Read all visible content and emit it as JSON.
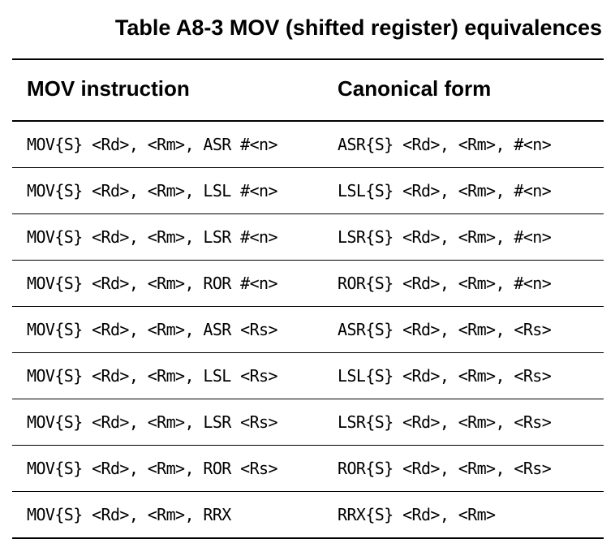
{
  "caption": "Table A8-3 MOV (shifted register) equivalences",
  "table": {
    "headers": [
      "MOV instruction",
      "Canonical form"
    ],
    "rows": [
      [
        "MOV{S} <Rd>, <Rm>, ASR #<n>",
        "ASR{S} <Rd>, <Rm>, #<n>"
      ],
      [
        "MOV{S} <Rd>, <Rm>, LSL #<n>",
        "LSL{S} <Rd>, <Rm>, #<n>"
      ],
      [
        "MOV{S} <Rd>, <Rm>, LSR #<n>",
        "LSR{S} <Rd>, <Rm>, #<n>"
      ],
      [
        "MOV{S} <Rd>, <Rm>, ROR #<n>",
        "ROR{S} <Rd>, <Rm>, #<n>"
      ],
      [
        "MOV{S} <Rd>, <Rm>, ASR <Rs>",
        "ASR{S} <Rd>, <Rm>, <Rs>"
      ],
      [
        "MOV{S} <Rd>, <Rm>, LSL <Rs>",
        "LSL{S} <Rd>, <Rm>, <Rs>"
      ],
      [
        "MOV{S} <Rd>, <Rm>, LSR <Rs>",
        "LSR{S} <Rd>, <Rm>, <Rs>"
      ],
      [
        "MOV{S} <Rd>, <Rm>, ROR <Rs>",
        "ROR{S} <Rd>, <Rm>, <Rs>"
      ],
      [
        "MOV{S} <Rd>, <Rm>, RRX",
        "RRX{S} <Rd>, <Rm>"
      ]
    ]
  }
}
